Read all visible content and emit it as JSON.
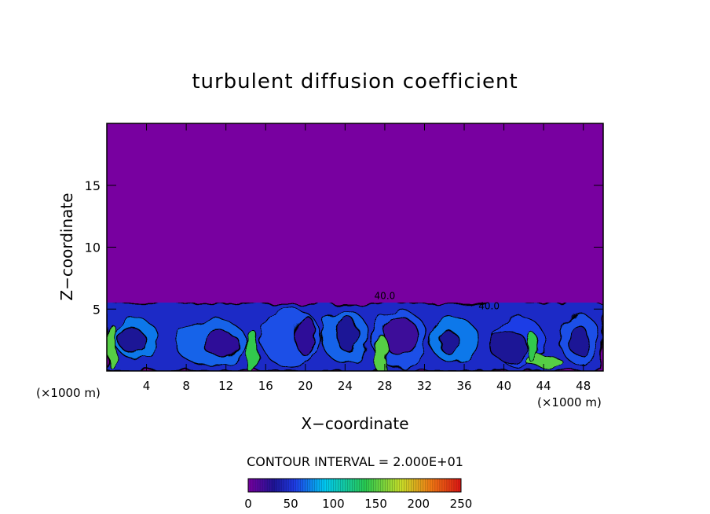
{
  "chart_data": {
    "type": "heatmap",
    "title": "turbulent diffusion coefficient",
    "xlabel": "X−coordinate",
    "ylabel": "Z−coordinate",
    "x_unit_left": "(×1000 m)",
    "x_unit_right": "(×1000 m)",
    "xlim": [
      0,
      50
    ],
    "ylim": [
      0,
      20
    ],
    "x_ticks": [
      4,
      8,
      12,
      16,
      20,
      24,
      28,
      32,
      36,
      40,
      44,
      48
    ],
    "y_ticks": [
      5,
      10,
      15
    ],
    "contour_interval_text": "CONTOUR INTERVAL = 2.000E+01",
    "contour_labels": [
      {
        "text": "40.0",
        "x": 28,
        "z": 5.8
      },
      {
        "text": "40.0",
        "x": 38.5,
        "z": 5.0
      }
    ],
    "colorbar": {
      "min": 0,
      "max": 250,
      "tick_values": [
        0,
        50,
        100,
        150,
        200,
        250
      ],
      "tick_labels": [
        "0",
        "50",
        "100",
        "150",
        "200",
        "250"
      ]
    },
    "field": {
      "background_value": 0,
      "turbulent_layer_top_z": 5.5,
      "eddies": [
        {
          "x": 3.0,
          "z": 2.6,
          "rx": 2.2,
          "rz": 1.6,
          "value": 70
        },
        {
          "x": 10.5,
          "z": 2.3,
          "rx": 3.6,
          "rz": 1.9,
          "value": 65
        },
        {
          "x": 18.5,
          "z": 2.7,
          "rx": 3.0,
          "rz": 2.4,
          "value": 60
        },
        {
          "x": 24.0,
          "z": 2.8,
          "rx": 2.4,
          "rz": 2.1,
          "value": 65
        },
        {
          "x": 29.5,
          "z": 2.6,
          "rx": 2.8,
          "rz": 2.3,
          "value": 60
        },
        {
          "x": 35.0,
          "z": 2.5,
          "rx": 2.4,
          "rz": 1.8,
          "value": 70
        },
        {
          "x": 41.5,
          "z": 2.4,
          "rx": 2.6,
          "rz": 2.0,
          "value": 55
        },
        {
          "x": 47.6,
          "z": 2.6,
          "rx": 2.0,
          "rz": 2.0,
          "value": 60
        }
      ],
      "inner_cores": [
        {
          "x": 2.5,
          "z": 2.5,
          "rx": 1.3,
          "rz": 1.0,
          "value": 30
        },
        {
          "x": 11.5,
          "z": 2.2,
          "rx": 1.8,
          "rz": 1.0,
          "value": 25
        },
        {
          "x": 20.0,
          "z": 2.9,
          "rx": 1.0,
          "rz": 1.6,
          "value": 25
        },
        {
          "x": 24.2,
          "z": 3.0,
          "rx": 1.1,
          "rz": 1.4,
          "value": 30
        },
        {
          "x": 29.6,
          "z": 2.8,
          "rx": 1.8,
          "rz": 1.5,
          "value": 20
        },
        {
          "x": 34.5,
          "z": 2.3,
          "rx": 1.0,
          "rz": 0.9,
          "value": 30
        },
        {
          "x": 40.5,
          "z": 2.0,
          "rx": 1.9,
          "rz": 1.2,
          "value": 30
        },
        {
          "x": 47.5,
          "z": 2.5,
          "rx": 1.0,
          "rz": 1.2,
          "value": 30
        }
      ],
      "high_spots": [
        {
          "x": 0.5,
          "z": 2.0,
          "rx": 0.5,
          "rz": 1.8,
          "value": 150
        },
        {
          "x": 14.7,
          "z": 1.5,
          "rx": 0.6,
          "rz": 1.8,
          "value": 140
        },
        {
          "x": 27.6,
          "z": 1.4,
          "rx": 0.6,
          "rz": 1.6,
          "value": 150
        },
        {
          "x": 44.0,
          "z": 0.8,
          "rx": 1.8,
          "rz": 0.5,
          "value": 150
        },
        {
          "x": 43.0,
          "z": 1.8,
          "rx": 0.5,
          "rz": 1.2,
          "value": 140
        }
      ]
    }
  }
}
